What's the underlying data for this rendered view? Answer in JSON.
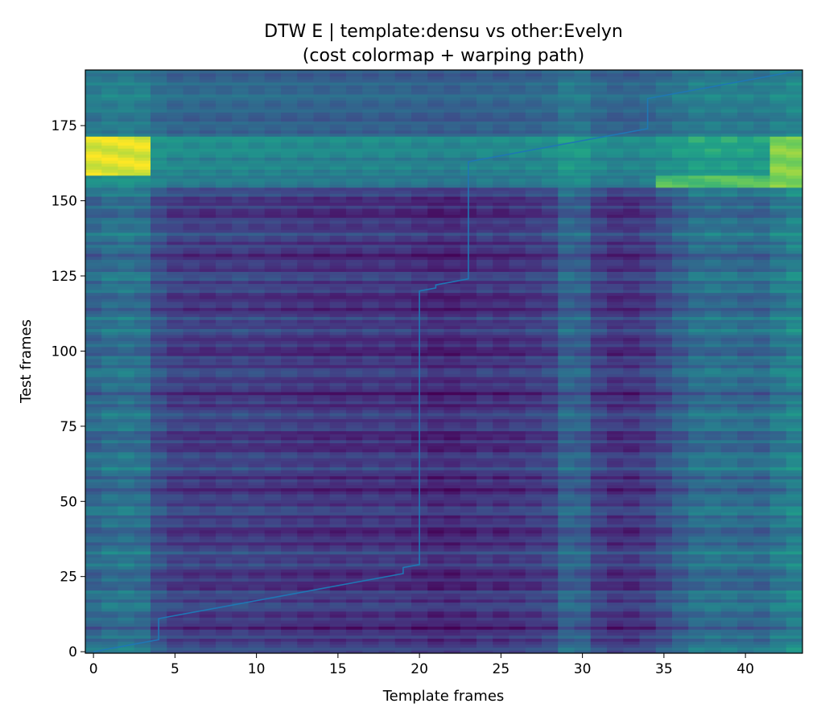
{
  "chart_data": {
    "type": "heatmap",
    "title": "DTW E | template:densu vs other:Evelyn",
    "subtitle": "(cost colormap + warping path)",
    "xlabel": "Template frames",
    "ylabel": "Test frames",
    "xlim": [
      -0.5,
      43.5
    ],
    "ylim": [
      -0.5,
      193.5
    ],
    "x_ticks": [
      0,
      5,
      10,
      15,
      20,
      25,
      30,
      35,
      40
    ],
    "y_ticks": [
      0,
      25,
      50,
      75,
      100,
      125,
      150,
      175
    ],
    "n_template_frames": 44,
    "n_test_frames": 194,
    "colormap": "viridis",
    "grid": false,
    "path_color": "#1f77b4",
    "column_cost": [
      0.42,
      0.46,
      0.47,
      0.45,
      0.3,
      0.24,
      0.23,
      0.22,
      0.23,
      0.24,
      0.23,
      0.22,
      0.21,
      0.2,
      0.19,
      0.19,
      0.19,
      0.2,
      0.2,
      0.19,
      0.17,
      0.15,
      0.15,
      0.17,
      0.2,
      0.18,
      0.2,
      0.22,
      0.25,
      0.4,
      0.38,
      0.24,
      0.19,
      0.19,
      0.23,
      0.3,
      0.38,
      0.45,
      0.46,
      0.45,
      0.43,
      0.42,
      0.5,
      0.55
    ],
    "row_bands": [
      {
        "from": 0,
        "to": 154,
        "offset": 0.0
      },
      {
        "from": 155,
        "to": 158,
        "offset": 0.38
      },
      {
        "from": 159,
        "to": 171,
        "offset": 0.48
      },
      {
        "from": 172,
        "to": 193,
        "offset": 0.3
      }
    ],
    "hot_spots": [
      {
        "x0": 0,
        "x1": 3,
        "y0": 159,
        "y1": 171,
        "value": 0.97
      },
      {
        "x0": 42,
        "x1": 43,
        "y0": 155,
        "y1": 171,
        "value": 0.88
      },
      {
        "x0": 35,
        "x1": 41,
        "y0": 155,
        "y1": 158,
        "value": 0.82
      }
    ],
    "warping_path": [
      {
        "x": 0,
        "y": 0
      },
      {
        "x": 4,
        "y": 4
      },
      {
        "x": 4,
        "y": 11
      },
      {
        "x": 19,
        "y": 26
      },
      {
        "x": 19,
        "y": 28
      },
      {
        "x": 20,
        "y": 29
      },
      {
        "x": 20,
        "y": 120
      },
      {
        "x": 21,
        "y": 121
      },
      {
        "x": 21,
        "y": 122
      },
      {
        "x": 23,
        "y": 124
      },
      {
        "x": 23,
        "y": 163
      },
      {
        "x": 34,
        "y": 174
      },
      {
        "x": 34,
        "y": 184
      },
      {
        "x": 43,
        "y": 193
      }
    ]
  }
}
